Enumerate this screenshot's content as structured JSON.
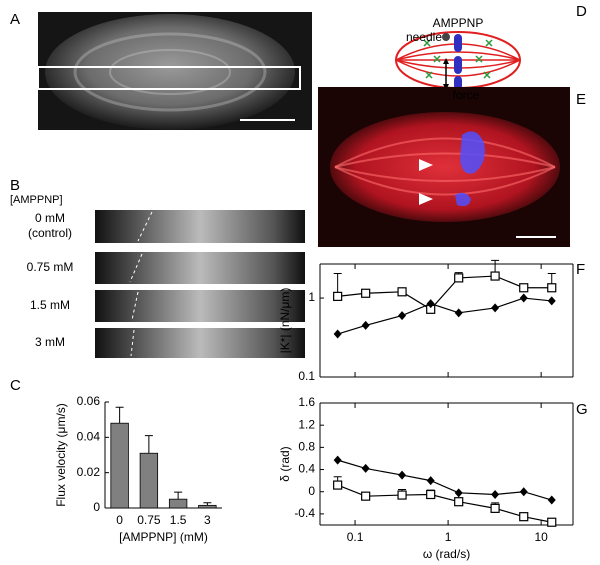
{
  "panel_labels": [
    "A",
    "B",
    "C",
    "D",
    "E",
    "F",
    "G"
  ],
  "panel_b": {
    "heading": "[AMPPNP]",
    "rows": [
      {
        "label": "0 mM",
        "note": "(control)"
      },
      {
        "label": "0.75 mM"
      },
      {
        "label": "1.5 mM"
      },
      {
        "label": "3 mM"
      }
    ]
  },
  "panel_d": {
    "drug": "AMPPNP",
    "needle": "needle",
    "force": "force"
  },
  "chart_data": [
    {
      "type": "bar",
      "categories": [
        "0",
        "0.75",
        "1.5",
        "3"
      ],
      "values": [
        0.048,
        0.031,
        0.005,
        0.0015
      ],
      "errors": [
        0.009,
        0.01,
        0.004,
        0.0015
      ],
      "color": "#808080",
      "ylabel": "Flux velocity (μm/s)",
      "xlabel": "[AMPPNP] (mM)",
      "ylim": [
        0,
        0.06
      ],
      "yticks": [
        0,
        0.02,
        0.04,
        0.06
      ],
      "frame": "axes"
    },
    {
      "type": "line",
      "ylabel": "|K*| (nN/μm)",
      "xscale": "log",
      "yscale": "log",
      "x": [
        0.065,
        0.13,
        0.32,
        0.65,
        1.3,
        3.2,
        6.5,
        13
      ],
      "series": [
        {
          "marker": "square",
          "color": "#000000",
          "values": [
            1.05,
            1.15,
            1.2,
            0.72,
            1.8,
            1.9,
            1.35,
            1.35
          ],
          "errors": [
            1.0,
            0,
            0,
            0.1,
            0.3,
            1.1,
            0,
            0.7
          ]
        },
        {
          "marker": "diamond",
          "color": "#000000",
          "values": [
            0.35,
            0.45,
            0.6,
            0.85,
            0.65,
            0.75,
            1.0,
            0.92
          ]
        }
      ],
      "xlim": [
        0.042,
        22
      ],
      "xticks": [
        0.1,
        1,
        10
      ],
      "xtick_labels": false,
      "ylim": [
        0.1,
        2.7
      ],
      "yticks": [
        0.1,
        1
      ],
      "frame": "box"
    },
    {
      "type": "line",
      "ylabel": "δ (rad)",
      "xlabel": "ω (rad/s)",
      "xscale": "log",
      "x": [
        0.065,
        0.13,
        0.32,
        0.65,
        1.3,
        3.2,
        6.5,
        13
      ],
      "series": [
        {
          "marker": "diamond",
          "color": "#000000",
          "values": [
            0.57,
            0.42,
            0.3,
            0.2,
            -0.02,
            -0.05,
            0.0,
            -0.15
          ]
        },
        {
          "marker": "square",
          "color": "#000000",
          "values": [
            0.12,
            -0.08,
            -0.06,
            -0.05,
            -0.18,
            -0.3,
            -0.45,
            -0.55
          ],
          "errors": [
            0.15,
            0,
            0.1,
            0.08,
            0,
            0.1,
            0,
            0
          ]
        }
      ],
      "xlim": [
        0.042,
        22
      ],
      "xticks": [
        0.1,
        1,
        10
      ],
      "ylim": [
        -0.6,
        1.6
      ],
      "yticks": [
        -0.4,
        0,
        0.4,
        0.8,
        1.2,
        1.6
      ],
      "frame": "box"
    }
  ]
}
